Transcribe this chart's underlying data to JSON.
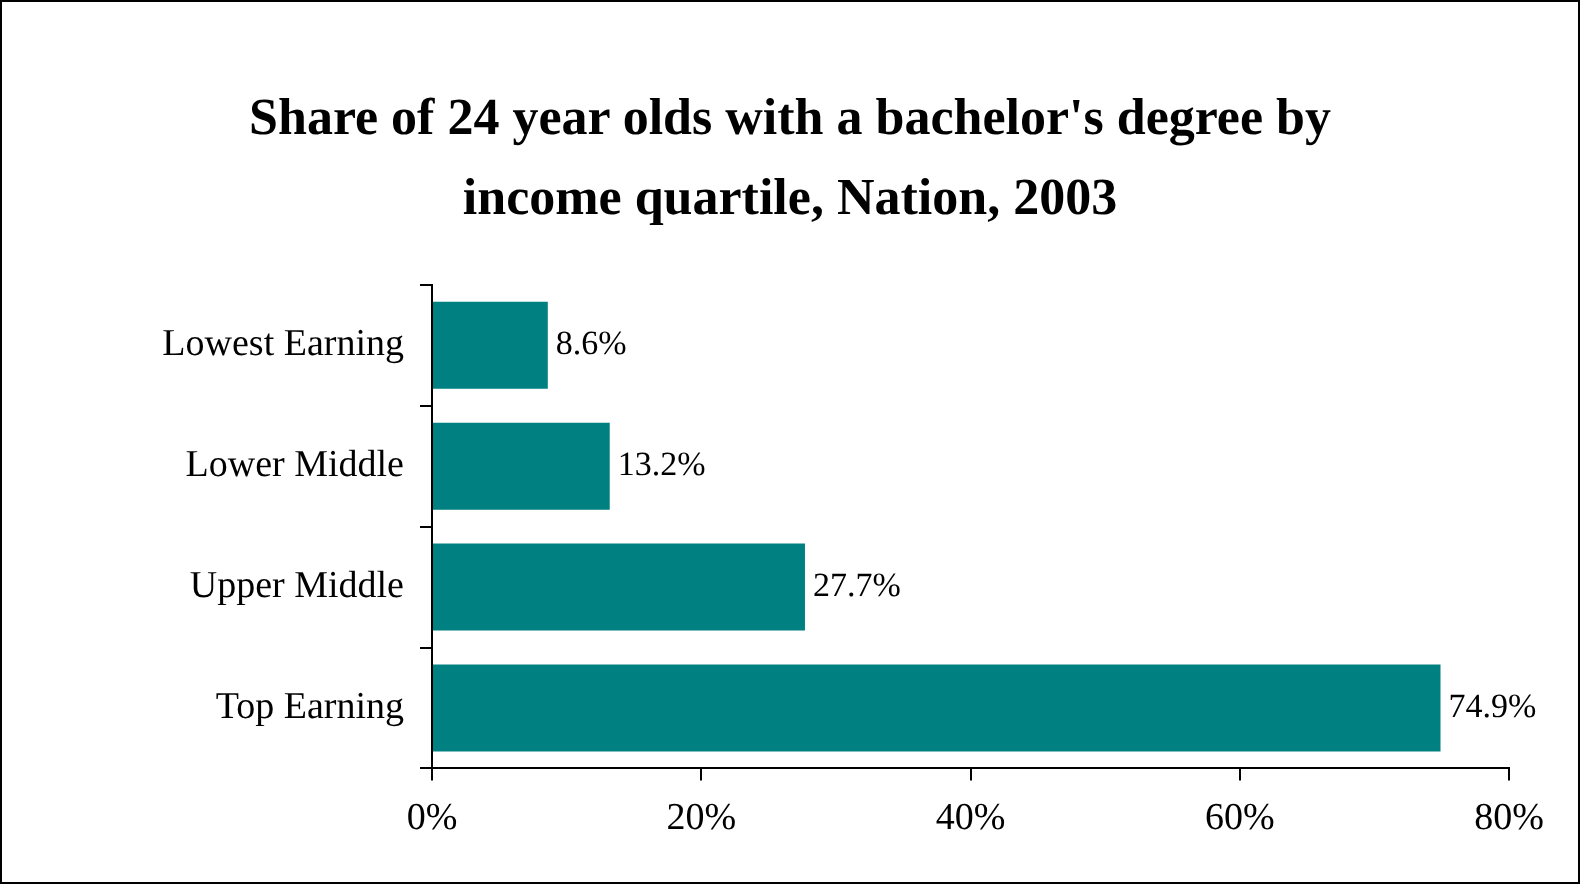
{
  "chart_data": {
    "type": "bar",
    "orientation": "horizontal",
    "title": "Share of 24 year olds with a bachelor's degree by income quartile, Nation, 2003",
    "categories": [
      "Lowest Earning",
      "Lower Middle",
      "Upper Middle",
      "Top Earning"
    ],
    "values": [
      8.6,
      13.2,
      27.7,
      74.9
    ],
    "value_labels": [
      "8.6%",
      "13.2%",
      "27.7%",
      "74.9%"
    ],
    "color": "#008080",
    "xlim": [
      0,
      80
    ],
    "xticks": [
      {
        "value": 0,
        "label": "0%"
      },
      {
        "value": 20,
        "label": "20%"
      },
      {
        "value": 40,
        "label": "40%"
      },
      {
        "value": 60,
        "label": "60%"
      },
      {
        "value": 80,
        "label": "80%"
      }
    ],
    "grid": false
  }
}
